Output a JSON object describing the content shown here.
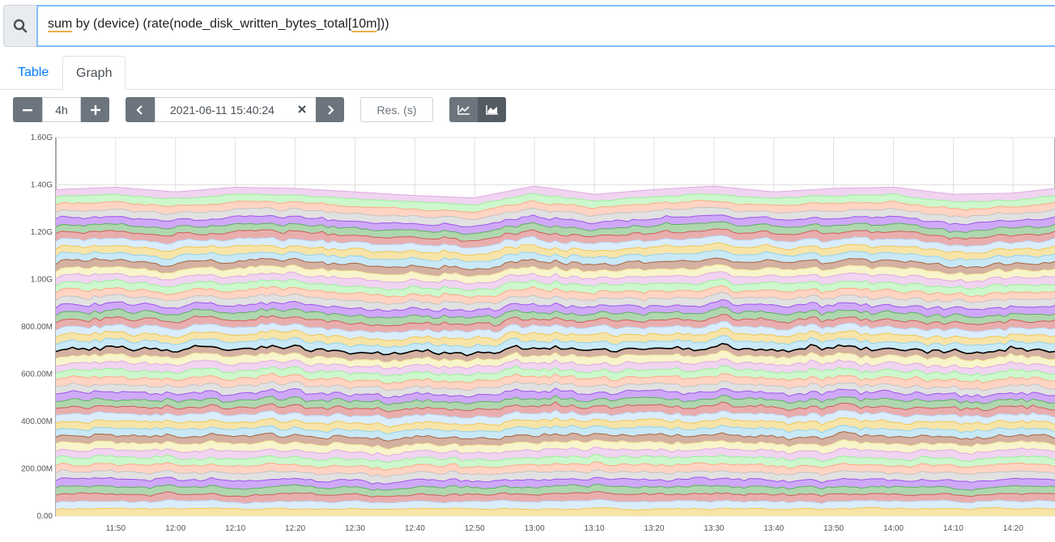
{
  "query": {
    "parts": [
      "sum",
      " by (device) (rate(node_disk_written_bytes_total[",
      "10m",
      "]))"
    ],
    "search_icon": "search-icon"
  },
  "tabs": [
    {
      "label": "Table",
      "active": false
    },
    {
      "label": "Graph",
      "active": true
    }
  ],
  "controls": {
    "range_value": "4h",
    "minus_icon": "minus-icon",
    "plus_icon": "plus-icon",
    "end_time_value": "2021-06-11 15:40:24",
    "clear_icon": "close-icon",
    "prev_icon": "chevron-left-icon",
    "next_icon": "chevron-right-icon",
    "resolution_placeholder": "Res. (s)",
    "line_chart_icon": "line-chart-icon",
    "stacked_chart_icon": "area-chart-icon",
    "stacked_active": true
  },
  "chart_data": {
    "type": "area",
    "stacked": true,
    "ylim": [
      0,
      1.6
    ],
    "y_unit": "G",
    "y_ticks": [
      {
        "value": 0.0,
        "label": "0.00"
      },
      {
        "value": 0.2,
        "label": "200.00M"
      },
      {
        "value": 0.4,
        "label": "400.00M"
      },
      {
        "value": 0.6,
        "label": "600.00M"
      },
      {
        "value": 0.8,
        "label": "800.00M"
      },
      {
        "value": 1.0,
        "label": "1.00G"
      },
      {
        "value": 1.2,
        "label": "1.20G"
      },
      {
        "value": 1.4,
        "label": "1.40G"
      },
      {
        "value": 1.6,
        "label": "1.60G"
      }
    ],
    "x_range": [
      "11:40",
      "14:27"
    ],
    "x_ticks": [
      "11:50",
      "12:00",
      "12:10",
      "12:20",
      "12:30",
      "12:40",
      "12:50",
      "13:00",
      "13:10",
      "13:20",
      "13:30",
      "13:40",
      "13:50",
      "14:00",
      "14:10",
      "14:20"
    ],
    "grid": true,
    "series_count": 45,
    "series_mean_value": 0.0305,
    "highlighted_series_index": 22,
    "total_profile": {
      "times": [
        "11:40",
        "11:50",
        "12:00",
        "12:10",
        "12:20",
        "12:30",
        "12:40",
        "12:50",
        "13:00",
        "13:10",
        "13:20",
        "13:30",
        "13:40",
        "13:50",
        "14:00",
        "14:10",
        "14:20",
        "14:27"
      ],
      "values": [
        1.38,
        1.39,
        1.37,
        1.39,
        1.385,
        1.37,
        1.355,
        1.345,
        1.395,
        1.36,
        1.38,
        1.395,
        1.37,
        1.385,
        1.39,
        1.36,
        1.365,
        1.385
      ]
    },
    "palette": [
      "#edc240",
      "#afd8f8",
      "#cb4b4b",
      "#4da74d",
      "#9440ed",
      "#bdbdbd",
      "#ffa07a",
      "#90ee90",
      "#dda0dd",
      "#f0e68c",
      "#a0522d",
      "#87ceeb"
    ]
  }
}
